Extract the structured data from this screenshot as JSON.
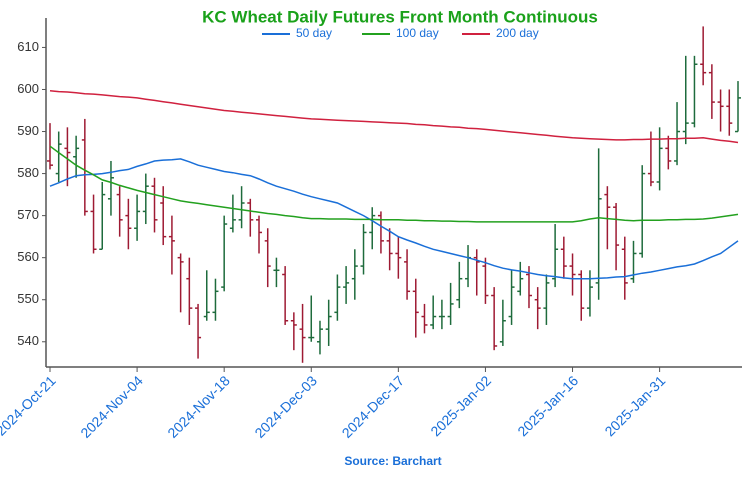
{
  "chart_data": {
    "type": "ohlc",
    "title": "KC Wheat Daily Futures Front Month Continuous",
    "source": "Source: Barchart",
    "categories": [
      "2024-Oct-21",
      null,
      null,
      null,
      null,
      null,
      null,
      null,
      null,
      null,
      "2024-Nov-04",
      null,
      null,
      null,
      null,
      null,
      null,
      null,
      null,
      null,
      "2024-Nov-18",
      null,
      null,
      null,
      null,
      null,
      null,
      null,
      null,
      null,
      "2024-Dec-03",
      null,
      null,
      null,
      null,
      null,
      null,
      null,
      null,
      null,
      "2024-Dec-17",
      null,
      null,
      null,
      null,
      null,
      null,
      null,
      null,
      null,
      "2025-Jan-02",
      null,
      null,
      null,
      null,
      null,
      null,
      null,
      null,
      null,
      "2025-Jan-16",
      null,
      null,
      null,
      null,
      null,
      null,
      null,
      null,
      null,
      "2025-Jan-31",
      null,
      null,
      null,
      null,
      null,
      null,
      null,
      null,
      null
    ],
    "ohlc": {
      "up_color": "#1e6b3c",
      "down_color": "#9e1a33",
      "open": [
        583,
        580,
        586,
        584,
        588,
        571,
        562,
        574,
        575,
        570,
        567,
        571,
        577,
        573,
        565,
        560,
        555,
        548,
        546,
        547,
        553,
        567,
        569,
        573,
        569,
        564,
        557,
        556,
        545,
        543,
        541,
        540,
        543,
        547,
        553,
        555,
        558,
        566,
        570,
        564,
        561,
        559,
        552,
        546,
        544,
        546,
        546,
        550,
        555,
        560,
        558,
        551,
        540,
        546,
        552,
        556,
        550,
        548,
        555,
        562,
        558,
        556,
        548,
        554,
        575,
        572,
        562,
        555,
        561,
        580,
        578,
        586,
        583,
        590,
        592,
        606,
        604,
        597,
        596,
        590
      ],
      "high": [
        592,
        590,
        591,
        589,
        593,
        575,
        578,
        583,
        577,
        574,
        575,
        580,
        579,
        577,
        570,
        561,
        560,
        549,
        557,
        555,
        570,
        575,
        577,
        574,
        570,
        567,
        560,
        558,
        547,
        549,
        551,
        545,
        550,
        556,
        558,
        562,
        568,
        572,
        571,
        567,
        565,
        562,
        555,
        549,
        551,
        550,
        554,
        559,
        563,
        562,
        560,
        553,
        550,
        557,
        559,
        558,
        553,
        556,
        568,
        565,
        561,
        557,
        557,
        586,
        577,
        573,
        565,
        564,
        582,
        590,
        591,
        589,
        597,
        608,
        608,
        615,
        606,
        600,
        600,
        602
      ],
      "low": [
        581,
        578,
        577,
        579,
        570,
        561,
        562,
        570,
        565,
        562,
        564,
        568,
        566,
        563,
        556,
        547,
        544,
        536,
        545,
        545,
        552,
        566,
        567,
        565,
        561,
        553,
        553,
        544,
        538,
        535,
        540,
        537,
        539,
        545,
        549,
        550,
        556,
        562,
        561,
        557,
        555,
        550,
        541,
        542,
        543,
        543,
        544,
        548,
        553,
        551,
        549,
        538,
        539,
        544,
        551,
        548,
        543,
        544,
        553,
        555,
        551,
        545,
        546,
        550,
        562,
        557,
        550,
        554,
        560,
        577,
        576,
        581,
        582,
        587,
        591,
        601,
        593,
        590,
        589,
        590
      ],
      "close": [
        582,
        587,
        585,
        586,
        571,
        562,
        575,
        579,
        569,
        567,
        571,
        577,
        569,
        565,
        564,
        559,
        548,
        541,
        547,
        552,
        568,
        569,
        573,
        569,
        566,
        558,
        557,
        545,
        544,
        541,
        541,
        543,
        546,
        553,
        554,
        558,
        566,
        570,
        564,
        561,
        560,
        552,
        547,
        544,
        546,
        546,
        549,
        555,
        560,
        559,
        551,
        539,
        545,
        553,
        555,
        551,
        548,
        554,
        562,
        558,
        556,
        548,
        553,
        574,
        572,
        563,
        554,
        561,
        580,
        578,
        586,
        583,
        590,
        592,
        606,
        604,
        597,
        596,
        592,
        598
      ]
    },
    "series": [
      {
        "name": "50 day",
        "color": "#1a6fd8",
        "values": [
          577.0,
          577.8,
          578.7,
          579.5,
          579.7,
          579.8,
          580.0,
          580.3,
          580.7,
          581.0,
          581.7,
          582.3,
          583.0,
          583.2,
          583.3,
          583.5,
          582.8,
          582.0,
          581.5,
          581.0,
          580.5,
          580.2,
          579.8,
          579.5,
          578.7,
          577.8,
          577.0,
          576.4,
          575.8,
          575.1,
          574.5,
          574.0,
          573.5,
          573.0,
          572.0,
          571.0,
          570.0,
          568.8,
          567.5,
          566.3,
          565.0,
          564.2,
          563.5,
          562.7,
          562.0,
          561.5,
          561.0,
          560.5,
          560.0,
          559.4,
          558.8,
          558.1,
          557.5,
          557.1,
          556.8,
          556.4,
          556.0,
          555.7,
          555.5,
          555.2,
          555.0,
          555.0,
          555.0,
          555.1,
          555.2,
          555.4,
          555.5,
          555.9,
          556.3,
          556.6,
          557.0,
          557.4,
          557.8,
          558.1,
          558.5,
          559.3,
          560.2,
          561.0,
          562.5,
          564.0
        ]
      },
      {
        "name": "100 day",
        "color": "#23a11f",
        "values": [
          586.5,
          585.0,
          583.5,
          582.0,
          580.8,
          579.7,
          578.5,
          577.9,
          577.2,
          576.6,
          576.0,
          575.5,
          575.0,
          574.5,
          574.0,
          573.5,
          573.2,
          572.9,
          572.6,
          572.3,
          572.0,
          571.7,
          571.4,
          571.1,
          570.8,
          570.5,
          570.3,
          570.0,
          569.8,
          569.5,
          569.3,
          569.3,
          569.2,
          569.2,
          569.2,
          569.1,
          569.1,
          569.1,
          569.0,
          569.0,
          569.0,
          568.9,
          568.9,
          568.8,
          568.8,
          568.7,
          568.7,
          568.6,
          568.6,
          568.5,
          568.5,
          568.5,
          568.5,
          568.5,
          568.5,
          568.5,
          568.5,
          568.5,
          568.5,
          568.5,
          568.5,
          568.8,
          569.2,
          569.5,
          569.3,
          569.1,
          568.9,
          568.8,
          568.9,
          568.9,
          568.9,
          569.0,
          569.0,
          569.1,
          569.1,
          569.2,
          569.4,
          569.7,
          570.0,
          570.3
        ]
      },
      {
        "name": "200 day",
        "color": "#d0213f",
        "values": [
          599.7,
          599.5,
          599.4,
          599.2,
          599.0,
          598.9,
          598.7,
          598.5,
          598.3,
          598.2,
          598.0,
          597.7,
          597.4,
          597.1,
          596.8,
          596.5,
          596.2,
          595.9,
          595.6,
          595.3,
          595.0,
          594.8,
          594.6,
          594.4,
          594.2,
          594.0,
          593.8,
          593.6,
          593.4,
          593.2,
          593.0,
          592.9,
          592.8,
          592.7,
          592.6,
          592.5,
          592.4,
          592.3,
          592.2,
          592.1,
          592.0,
          591.9,
          591.7,
          591.6,
          591.4,
          591.3,
          591.1,
          591.0,
          590.8,
          590.7,
          590.5,
          590.3,
          590.1,
          589.9,
          589.7,
          589.5,
          589.3,
          589.1,
          588.9,
          588.7,
          588.5,
          588.4,
          588.3,
          588.2,
          588.1,
          588.0,
          588.0,
          588.1,
          588.1,
          588.2,
          588.2,
          588.3,
          588.3,
          588.4,
          588.4,
          588.5,
          588.2,
          587.9,
          587.7,
          587.4
        ]
      }
    ],
    "ylim": [
      534,
      617
    ],
    "yticks": [
      540,
      550,
      560,
      570,
      580,
      590,
      600,
      610
    ],
    "grid": false,
    "title_color": "#1aa11a",
    "label_color": "#1a6fd8"
  }
}
